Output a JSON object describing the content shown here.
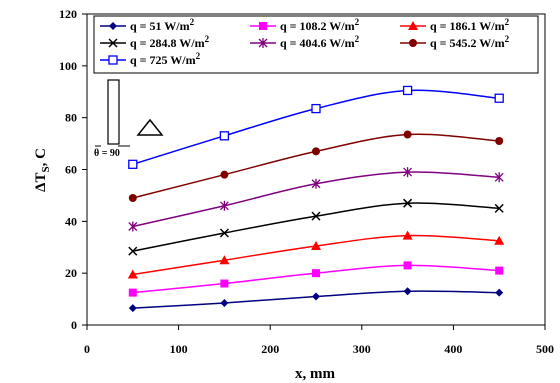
{
  "chart_data": {
    "type": "line",
    "xlabel": "x, mm",
    "ylabel_main": "ΔT",
    "ylabel_sub": "S",
    "ylabel_tail": ", C",
    "xlim": [
      0,
      500
    ],
    "ylim": [
      0,
      120
    ],
    "xticks": [
      0,
      100,
      200,
      300,
      400,
      500
    ],
    "yticks": [
      0,
      20,
      40,
      60,
      80,
      100,
      120
    ],
    "grid": false,
    "legend_position": "top",
    "annotation": "θ = 90",
    "x": [
      50,
      150,
      250,
      350,
      450
    ],
    "series": [
      {
        "name_text": "q = 51  W/m",
        "name_sup": "2",
        "color": "#000080",
        "marker": "diamond",
        "values": [
          6.5,
          8.5,
          11,
          13,
          12.5
        ]
      },
      {
        "name_text": "q = 108.2  W/m",
        "name_sup": "2",
        "color": "#FF00FF",
        "marker": "square",
        "values": [
          12.5,
          16,
          20,
          23,
          21
        ]
      },
      {
        "name_text": "q = 186.1  W/m",
        "name_sup": "2",
        "color": "#FF0000",
        "marker": "triangle",
        "values": [
          19.5,
          25,
          30.5,
          34.5,
          32.5
        ]
      },
      {
        "name_text": "q = 284.8  W/m",
        "name_sup": "2",
        "color": "#000000",
        "marker": "x",
        "values": [
          28.5,
          35.5,
          42,
          47,
          45
        ]
      },
      {
        "name_text": "q = 404.6  W/m",
        "name_sup": "2",
        "color": "#800080",
        "marker": "star",
        "values": [
          38,
          46,
          54.5,
          59,
          57
        ]
      },
      {
        "name_text": "q = 545.2  W/m",
        "name_sup": "2",
        "color": "#800000",
        "marker": "circle",
        "values": [
          49,
          58,
          67,
          73.5,
          71
        ]
      },
      {
        "name_text": "q = 725   W/m",
        "name_sup": "2",
        "color": "#0000FF",
        "marker": "open-square",
        "values": [
          62,
          73,
          83.5,
          90.5,
          87.5
        ]
      }
    ]
  }
}
